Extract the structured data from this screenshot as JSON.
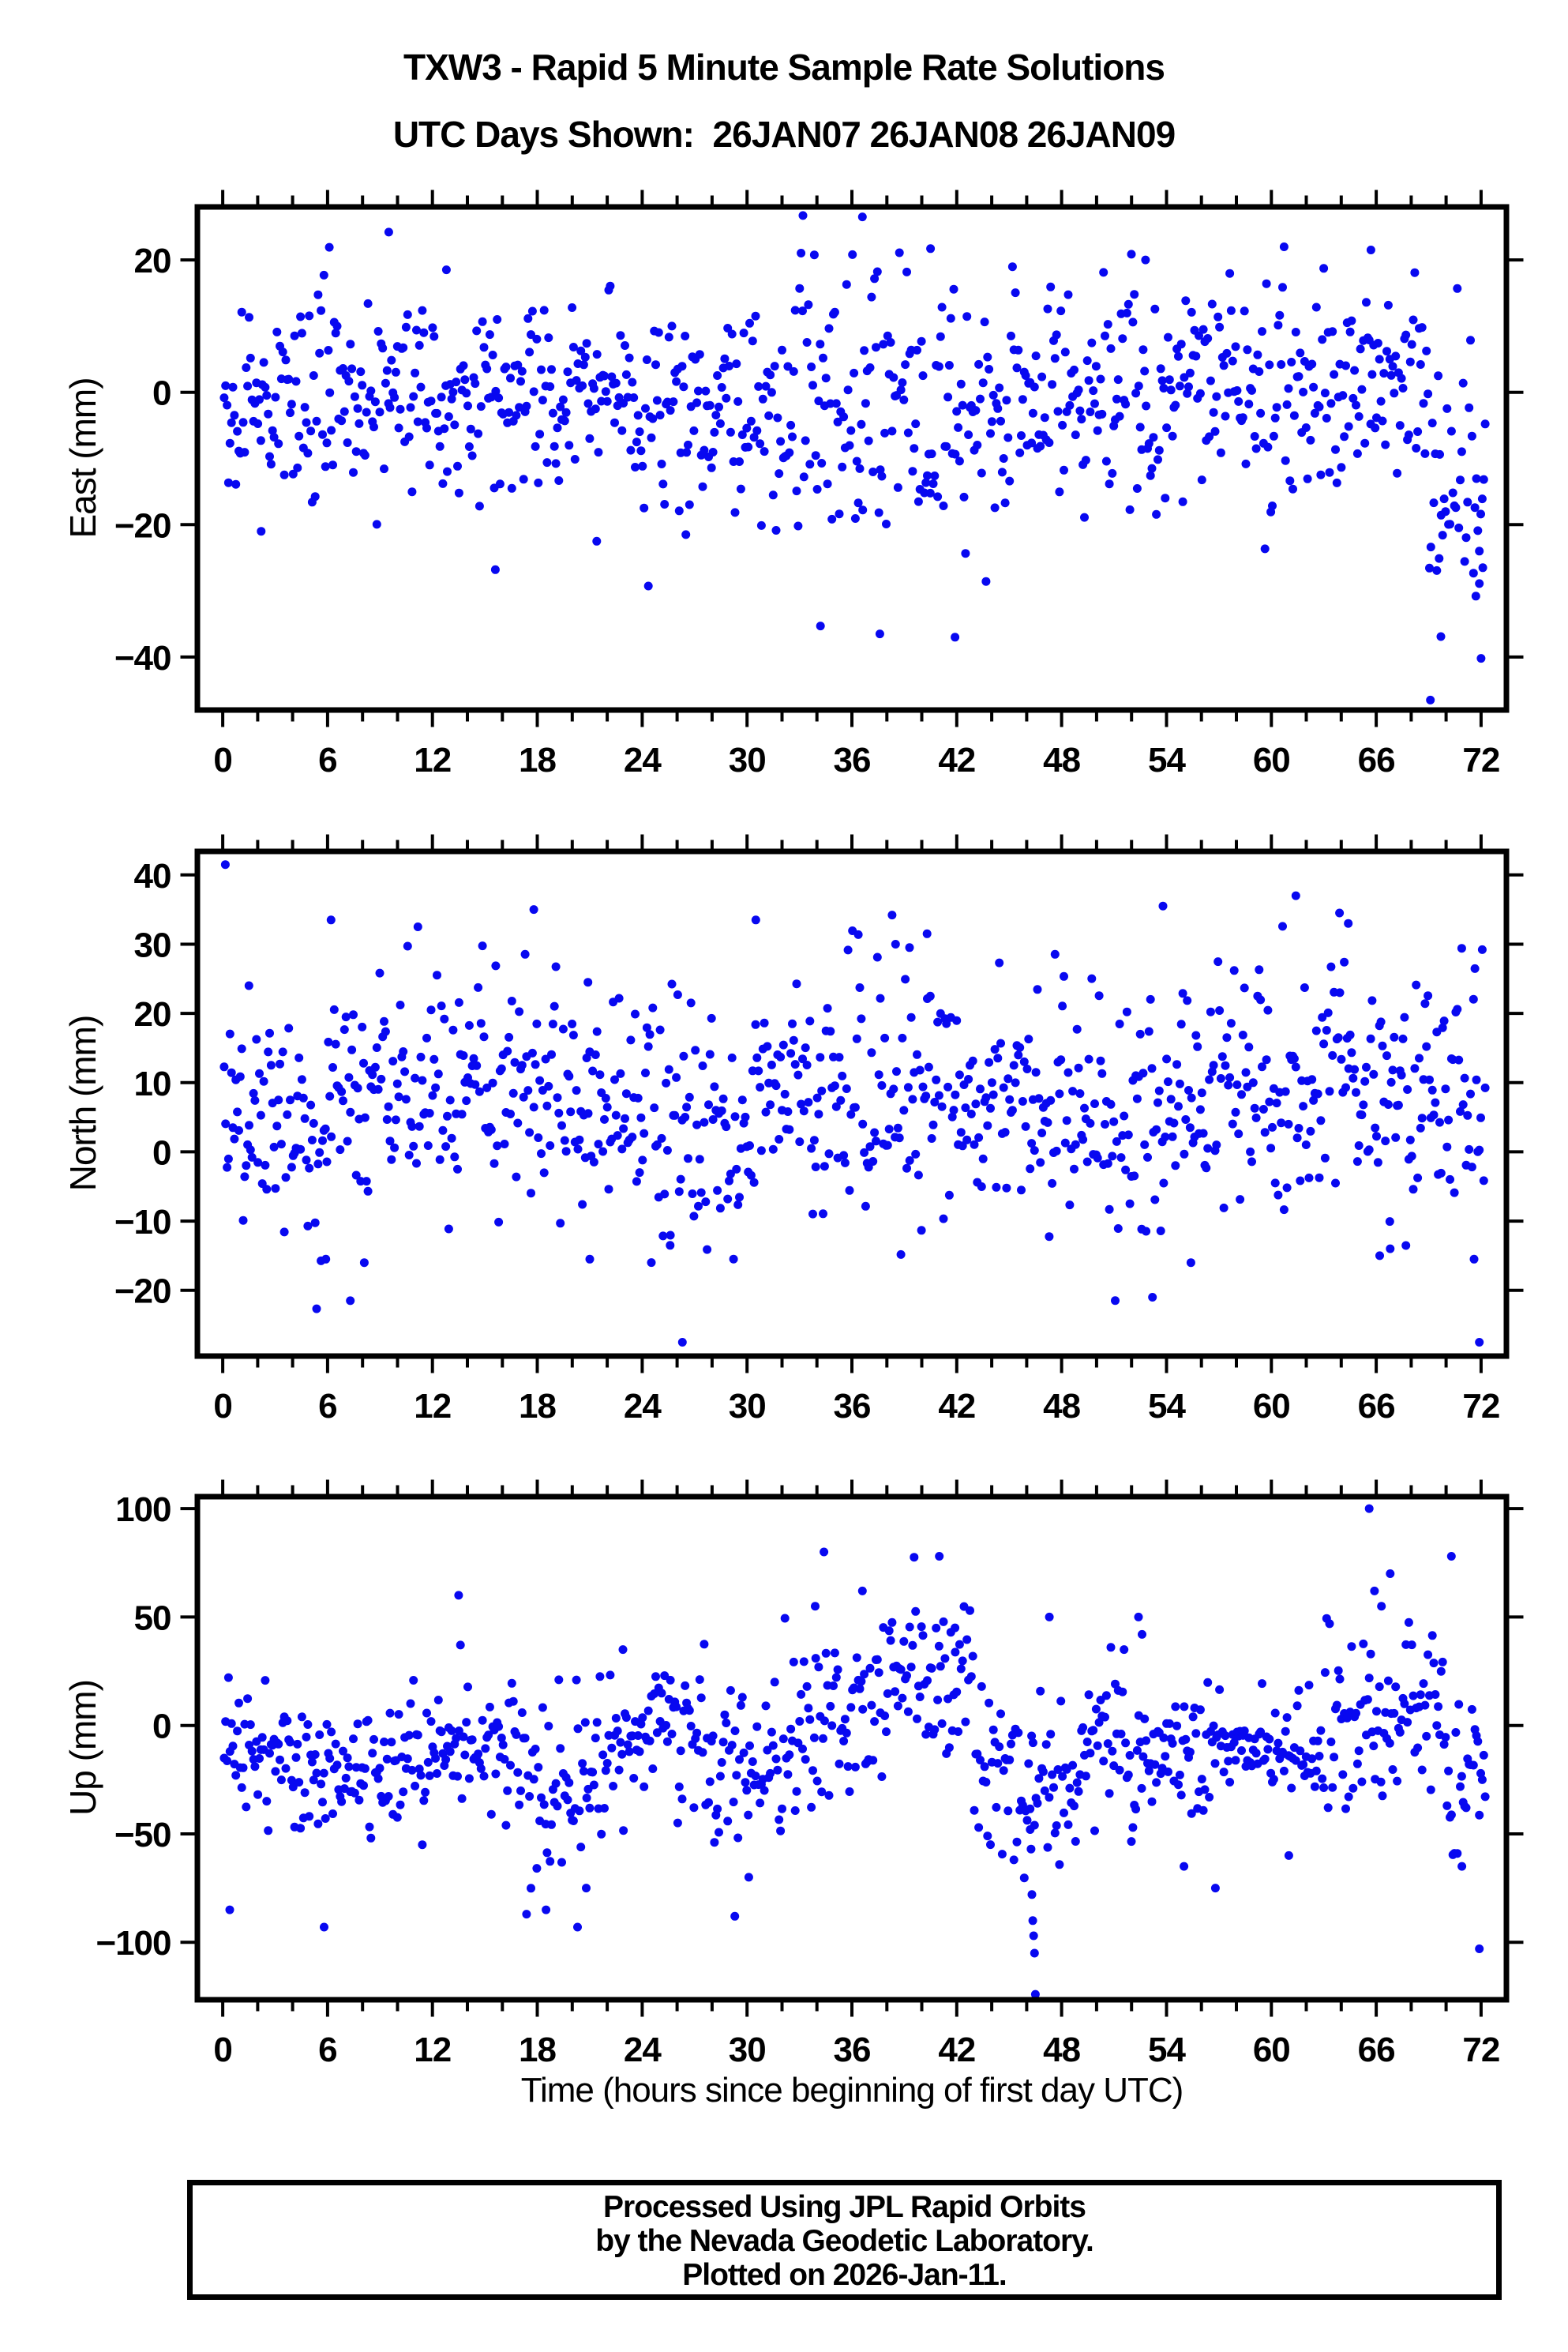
{
  "title": {
    "line1": "TXW3 - Rapid 5 Minute Sample Rate Solutions",
    "line2": "UTC Days Shown:  26JAN07 26JAN08 26JAN09"
  },
  "xaxis_title": "Time (hours since beginning of first day UTC)",
  "footer": {
    "line1": "Processed Using JPL Rapid Orbits",
    "line2": "by the Nevada Geodetic Laboratory.",
    "line3": "Plotted on 2026-Jan-11."
  },
  "style": {
    "marker_color": "#0808f0",
    "marker_radius": 5.5,
    "axis_color": "#000000",
    "frame_width": 7,
    "major_tick_len": 18,
    "minor_tick_len": 11,
    "tick_width": 4
  },
  "chart_data": [
    {
      "type": "scatter",
      "component": "east",
      "ylabel": "East (mm)",
      "ylim": [
        -48,
        28
      ],
      "yticks": [
        20,
        0,
        -20,
        -40
      ],
      "xlim": [
        -1.45,
        73.45
      ],
      "xticks": [
        0,
        6,
        12,
        18,
        24,
        30,
        36,
        42,
        48,
        54,
        60,
        66,
        72
      ],
      "x_minor_step": 2,
      "grid": false,
      "legend": null,
      "points_spec": {
        "n": 860,
        "x_start": 0.08,
        "x_step": 0.084,
        "seed": 17,
        "segments": [
          [
            0,
            3,
            -3,
            7
          ],
          [
            3,
            12,
            -0.5,
            8
          ],
          [
            12,
            16,
            -2,
            9
          ],
          [
            16,
            24,
            -1,
            8.5
          ],
          [
            24,
            33,
            -4,
            8
          ],
          [
            33,
            40,
            -1,
            9.5
          ],
          [
            40,
            48,
            -2,
            9
          ],
          [
            48,
            60,
            -0.5,
            8
          ],
          [
            60,
            69,
            0.5,
            8
          ],
          [
            69,
            72.5,
            -12,
            11
          ]
        ],
        "clamp": [
          -47,
          27.5
        ]
      },
      "outliers": [
        [
          2.2,
          -21
        ],
        [
          6.1,
          21.9
        ],
        [
          9.5,
          24.2
        ],
        [
          12.8,
          18.5
        ],
        [
          15.6,
          -26.8
        ],
        [
          21.4,
          -22.5
        ],
        [
          26.5,
          -21.5
        ],
        [
          33.2,
          26.7
        ],
        [
          36.6,
          26.5
        ],
        [
          34.2,
          -35.3
        ],
        [
          37.6,
          -36.5
        ],
        [
          40.5,
          21.7
        ],
        [
          41.9,
          -37
        ],
        [
          52.8,
          20
        ],
        [
          65.7,
          21.5
        ],
        [
          69.1,
          -46.5
        ],
        [
          69.6,
          -25.1
        ],
        [
          69.7,
          -36.9
        ],
        [
          71.7,
          -30.8
        ],
        [
          71.9,
          -28.9
        ],
        [
          72.0,
          -40.2
        ],
        [
          72.1,
          -26.5
        ]
      ]
    },
    {
      "type": "scatter",
      "component": "north",
      "ylabel": "North (mm)",
      "ylim": [
        -29.5,
        43.4
      ],
      "yticks": [
        40,
        30,
        20,
        10,
        0,
        -10,
        -20
      ],
      "xlim": [
        -1.45,
        73.45
      ],
      "xticks": [
        0,
        6,
        12,
        18,
        24,
        30,
        36,
        42,
        48,
        54,
        60,
        66,
        72
      ],
      "x_minor_step": 2,
      "grid": false,
      "legend": null,
      "points_spec": {
        "n": 860,
        "x_start": 0.08,
        "x_step": 0.084,
        "seed": 29,
        "segments": [
          [
            0,
            6,
            4,
            8
          ],
          [
            6,
            12,
            9,
            8
          ],
          [
            12,
            24,
            9,
            8
          ],
          [
            24,
            30,
            5,
            9
          ],
          [
            30,
            36,
            9,
            8
          ],
          [
            36,
            42,
            8,
            9
          ],
          [
            42,
            48,
            7,
            8
          ],
          [
            48,
            54,
            6,
            9
          ],
          [
            54,
            60,
            9,
            8
          ],
          [
            60,
            66,
            9,
            9
          ],
          [
            66,
            72.5,
            8,
            9
          ]
        ],
        "clamp": [
          -28.5,
          42.5
        ]
      },
      "outliers": [
        [
          0.15,
          41.5
        ],
        [
          1.5,
          24
        ],
        [
          5.9,
          -15.5
        ],
        [
          6.2,
          33.5
        ],
        [
          7.3,
          -21.5
        ],
        [
          8.1,
          -16
        ],
        [
          17.8,
          35
        ],
        [
          20.9,
          24.5
        ],
        [
          21.0,
          -15.5
        ],
        [
          25.6,
          -13.5
        ],
        [
          26.3,
          -27.5
        ],
        [
          30.5,
          33.5
        ],
        [
          38.5,
          30
        ],
        [
          39.3,
          29.5
        ],
        [
          40.3,
          31.5
        ],
        [
          53.2,
          -21
        ],
        [
          53.8,
          35.5
        ],
        [
          55.4,
          -16
        ],
        [
          61.4,
          37
        ],
        [
          63.9,
          34.5
        ],
        [
          64.4,
          33
        ],
        [
          66.2,
          -15
        ],
        [
          66.8,
          -14
        ],
        [
          71.6,
          -15.5
        ],
        [
          71.9,
          -27.5
        ]
      ]
    },
    {
      "type": "scatter",
      "component": "up",
      "ylabel": "Up (mm)",
      "ylim": [
        -126.5,
        105.5
      ],
      "yticks": [
        100,
        50,
        0,
        -50,
        -100
      ],
      "xlim": [
        -1.45,
        73.45
      ],
      "xticks": [
        0,
        6,
        12,
        18,
        24,
        30,
        36,
        42,
        48,
        54,
        60,
        66,
        72
      ],
      "x_minor_step": 2,
      "grid": false,
      "legend": null,
      "points_spec": {
        "n": 860,
        "x_start": 0.08,
        "x_step": 0.084,
        "seed": 43,
        "segments": [
          [
            0,
            4,
            -15,
            16
          ],
          [
            4,
            10,
            -22,
            16
          ],
          [
            10,
            16,
            -12,
            15
          ],
          [
            16,
            22,
            -30,
            22
          ],
          [
            22,
            28,
            -5,
            15
          ],
          [
            28,
            33,
            -18,
            20
          ],
          [
            33,
            38,
            8,
            20
          ],
          [
            38,
            43,
            18,
            18
          ],
          [
            43,
            49,
            -25,
            20
          ],
          [
            49,
            53,
            -5,
            18
          ],
          [
            53,
            58,
            -18,
            14
          ],
          [
            58,
            63,
            -15,
            12
          ],
          [
            63,
            67,
            0,
            22
          ],
          [
            67,
            70,
            5,
            20
          ],
          [
            70,
            72.5,
            -25,
            18
          ]
        ],
        "clamp": [
          -125,
          104
        ]
      },
      "outliers": [
        [
          0.4,
          -85
        ],
        [
          5.8,
          -93
        ],
        [
          13.5,
          60
        ],
        [
          18.5,
          -85
        ],
        [
          20.3,
          -93
        ],
        [
          20.8,
          -75
        ],
        [
          22.9,
          35
        ],
        [
          29.3,
          -88
        ],
        [
          30.1,
          -70
        ],
        [
          33.9,
          55
        ],
        [
          34.4,
          80
        ],
        [
          36.6,
          62
        ],
        [
          41.0,
          78
        ],
        [
          41.9,
          45
        ],
        [
          46.2,
          -48
        ],
        [
          46.25,
          -57
        ],
        [
          46.3,
          -78
        ],
        [
          46.35,
          -90
        ],
        [
          46.4,
          -97
        ],
        [
          46.45,
          -105
        ],
        [
          46.5,
          -124
        ],
        [
          47.3,
          50
        ],
        [
          52.4,
          50
        ],
        [
          52.6,
          42
        ],
        [
          55.0,
          -65
        ],
        [
          56.8,
          -75
        ],
        [
          61.0,
          -60
        ],
        [
          65.6,
          100
        ],
        [
          65.9,
          62
        ],
        [
          66.3,
          55
        ],
        [
          66.8,
          70
        ],
        [
          70.3,
          78
        ],
        [
          70.9,
          -65
        ],
        [
          71.9,
          -103
        ]
      ]
    }
  ]
}
